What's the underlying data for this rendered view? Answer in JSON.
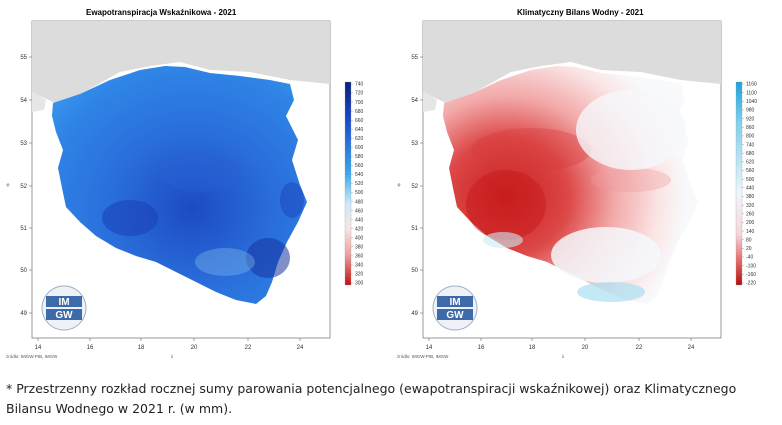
{
  "maps": [
    {
      "title": "Ewapotranspiracja Wskaźnikowa - 2021",
      "x_ticks": [
        "14",
        "16",
        "18",
        "20",
        "22",
        "24"
      ],
      "y_ticks": [
        "55",
        "54",
        "53",
        "52",
        "51",
        "50",
        "49"
      ],
      "x_axis_label": "λ",
      "y_axis_label": "φ",
      "source": "żródło: IMGW-PIB, IMGW",
      "colorbar_ticks": [
        "740",
        "720",
        "700",
        "680",
        "660",
        "640",
        "620",
        "600",
        "580",
        "560",
        "540",
        "520",
        "500",
        "480",
        "460",
        "440",
        "420",
        "400",
        "380",
        "360",
        "340",
        "320",
        "300"
      ],
      "palette": "red-white-blue (low = red, high = dark blue)"
    },
    {
      "title": "Klimatyczny Bilans Wodny - 2021",
      "x_ticks": [
        "14",
        "16",
        "18",
        "20",
        "22",
        "24"
      ],
      "y_ticks": [
        "55",
        "54",
        "53",
        "52",
        "51",
        "50",
        "49"
      ],
      "x_axis_label": "λ",
      "y_axis_label": "φ",
      "source": "żródło: IMGW-PIB, IMGW",
      "colorbar_ticks": [
        "1160",
        "1100",
        "1040",
        "980",
        "920",
        "860",
        "800",
        "740",
        "680",
        "620",
        "560",
        "500",
        "440",
        "380",
        "320",
        "260",
        "200",
        "140",
        "80",
        "20",
        "-40",
        "-100",
        "-160",
        "-220"
      ],
      "palette": "red-white-cyan (deficit = red, surplus = cyan)"
    }
  ],
  "logo": {
    "line1": "IM",
    "line2": "GW"
  },
  "caption": "* Przestrzenny rozkład rocznej sumy parowania potencjalnego (ewapotranspiracji wskaźnikowej) oraz Klimatycznego Bilansu Wodnego w 2021 r. (w mm).",
  "colors": {
    "neighbour_land": "#dcdcdc",
    "et_dark": "#1f4fc6",
    "et_mid": "#2f7be0",
    "kbw_deficit": "#d42a2a",
    "kbw_neutral": "#f7f8fa",
    "kbw_surplus": "#8fd4ee"
  }
}
